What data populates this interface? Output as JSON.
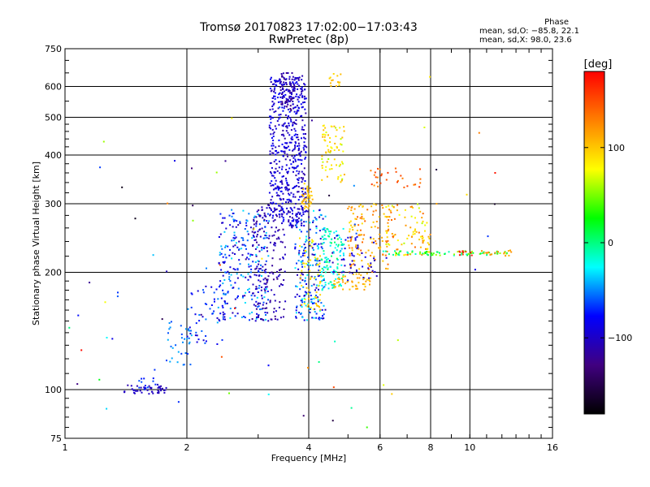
{
  "chart_data": {
    "type": "scatter",
    "title_lines": [
      "Tromsø 20170823 17:02:00−17:03:43",
      "RwPretec (8p)"
    ],
    "xlabel": "Frequency [MHz]",
    "ylabel": "Stationary phase Virtual Height [km]",
    "x_scale": "log",
    "y_scale": "log",
    "xlim": [
      1,
      16
    ],
    "ylim": [
      75,
      750
    ],
    "x_ticks": [
      1,
      2,
      4,
      6,
      8,
      10,
      16
    ],
    "x_tick_labels": [
      "1",
      "2",
      "4",
      "6",
      "8",
      "10",
      "16"
    ],
    "y_ticks": [
      75,
      100,
      200,
      300,
      400,
      500,
      600,
      750
    ],
    "y_tick_labels": [
      "75",
      "100",
      "200",
      "300",
      "400",
      "500",
      "600",
      "750"
    ],
    "grid": true,
    "stats": {
      "heading": "Phase",
      "line_o": "mean, sd,O: −85.8, 22.1",
      "line_x": "mean, sd,X:  98.0, 23.6"
    },
    "colorbar": {
      "label": "[deg]",
      "range": [
        -180,
        180
      ],
      "ticks": [
        100,
        0,
        -100
      ],
      "tick_labels": [
        "100",
        "0",
        "−100"
      ],
      "colors": [
        "#ff0000",
        "#ff8000",
        "#ffff00",
        "#00ff00",
        "#00ffff",
        "#0000ff",
        "#400080",
        "#000000"
      ]
    },
    "clusters": [
      {
        "x": [
          1.4,
          1.78
        ],
        "y": [
          97,
          103
        ],
        "phase": [
          -110,
          -95
        ],
        "n": 45
      },
      {
        "x": [
          1.5,
          1.72
        ],
        "y": [
          100,
          110
        ],
        "phase": [
          -80,
          -60
        ],
        "n": 12
      },
      {
        "x": [
          1.72,
          2.05
        ],
        "y": [
          115,
          150
        ],
        "phase": [
          -70,
          -40
        ],
        "n": 30
      },
      {
        "x": [
          2.0,
          2.5
        ],
        "y": [
          130,
          190
        ],
        "phase": [
          -100,
          -40
        ],
        "n": 60
      },
      {
        "x": [
          2.4,
          3.2
        ],
        "y": [
          150,
          290
        ],
        "phase": [
          -110,
          -30
        ],
        "n": 260
      },
      {
        "x": [
          2.9,
          3.5
        ],
        "y": [
          150,
          300
        ],
        "phase": [
          -125,
          -95
        ],
        "n": 160
      },
      {
        "x": [
          3.2,
          3.95
        ],
        "y": [
          260,
          640
        ],
        "phase": [
          -115,
          -75
        ],
        "n": 560
      },
      {
        "x": [
          3.4,
          3.7
        ],
        "y": [
          520,
          650
        ],
        "phase": [
          -130,
          -100
        ],
        "n": 60
      },
      {
        "x": [
          3.7,
          4.4
        ],
        "y": [
          150,
          290
        ],
        "phase": [
          -110,
          -20
        ],
        "n": 210
      },
      {
        "x": [
          4.3,
          4.9
        ],
        "y": [
          180,
          260
        ],
        "phase": [
          -40,
          10
        ],
        "n": 110
      },
      {
        "x": [
          3.8,
          4.3
        ],
        "y": [
          160,
          250
        ],
        "phase": [
          70,
          110
        ],
        "n": 60
      },
      {
        "x": [
          4.3,
          4.9
        ],
        "y": [
          340,
          480
        ],
        "phase": [
          60,
          110
        ],
        "n": 70
      },
      {
        "x": [
          3.85,
          4.1
        ],
        "y": [
          290,
          340
        ],
        "phase": [
          90,
          115
        ],
        "n": 40
      },
      {
        "x": [
          4.5,
          4.8
        ],
        "y": [
          600,
          650
        ],
        "phase": [
          90,
          110
        ],
        "n": 14
      },
      {
        "x": [
          4.6,
          5.7
        ],
        "y": [
          180,
          200
        ],
        "phase": [
          95,
          120
        ],
        "n": 50
      },
      {
        "x": [
          5.0,
          6.3
        ],
        "y": [
          200,
          300
        ],
        "phase": [
          90,
          140
        ],
        "n": 130
      },
      {
        "x": [
          4.5,
          5.9
        ],
        "y": [
          190,
          250
        ],
        "phase": [
          -110,
          -80
        ],
        "n": 50
      },
      {
        "x": [
          5.5,
          6.3
        ],
        "y": [
          330,
          370
        ],
        "phase": [
          120,
          160
        ],
        "n": 16
      },
      {
        "x": [
          6.2,
          7.8
        ],
        "y": [
          220,
          300
        ],
        "phase": [
          60,
          140
        ],
        "n": 70
      },
      {
        "x": [
          6.4,
          7.6
        ],
        "y": [
          330,
          370
        ],
        "phase": [
          120,
          160
        ],
        "n": 14
      },
      {
        "x": [
          7.0,
          8.0
        ],
        "y": [
          225,
          270
        ],
        "phase": [
          80,
          130
        ],
        "n": 25
      },
      {
        "x": [
          6.0,
          12.5
        ],
        "y": [
          221,
          227
        ],
        "phase": [
          -20,
          60
        ],
        "n": 70
      },
      {
        "x": [
          9.4,
          10.2
        ],
        "y": [
          221,
          227
        ],
        "phase": [
          150,
          180
        ],
        "n": 10
      },
      {
        "x": [
          10.5,
          12.8
        ],
        "y": [
          220,
          228
        ],
        "phase": [
          100,
          130
        ],
        "n": 16
      },
      {
        "x": [
          1.0,
          12.0
        ],
        "y": [
          80,
          650
        ],
        "phase": [
          -180,
          180
        ],
        "n": 70
      }
    ]
  }
}
